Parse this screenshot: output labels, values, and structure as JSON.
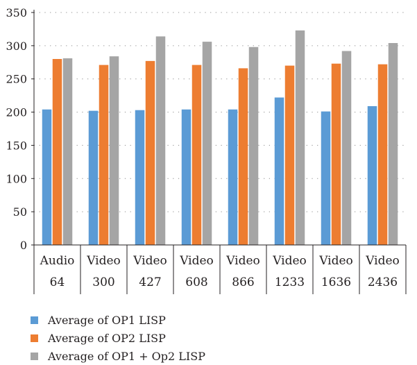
{
  "chart_data": {
    "type": "bar",
    "categories": [
      [
        "Audio",
        "64"
      ],
      [
        "Video",
        "300"
      ],
      [
        "Video",
        "427"
      ],
      [
        "Video",
        "608"
      ],
      [
        "Video",
        "866"
      ],
      [
        "Video",
        "1233"
      ],
      [
        "Video",
        "1636"
      ],
      [
        "Video",
        "2436"
      ]
    ],
    "series": [
      {
        "name": "Average of OP1 LISP",
        "color": "#5b9bd5",
        "values": [
          204,
          202,
          203,
          204,
          204,
          222,
          201,
          209
        ]
      },
      {
        "name": "Average of OP2 LISP",
        "color": "#ed7d31",
        "values": [
          280,
          271,
          277,
          271,
          266,
          270,
          273,
          272
        ]
      },
      {
        "name": "Average of OP1 + Op2 LISP",
        "color": "#a5a5a5",
        "values": [
          281,
          284,
          314,
          306,
          298,
          323,
          292,
          304
        ]
      }
    ],
    "yticks": [
      0,
      50,
      100,
      150,
      200,
      250,
      300,
      350
    ],
    "ylim": [
      0,
      350
    ],
    "grid": "dotted horizontal",
    "legend": "bottom-left"
  }
}
